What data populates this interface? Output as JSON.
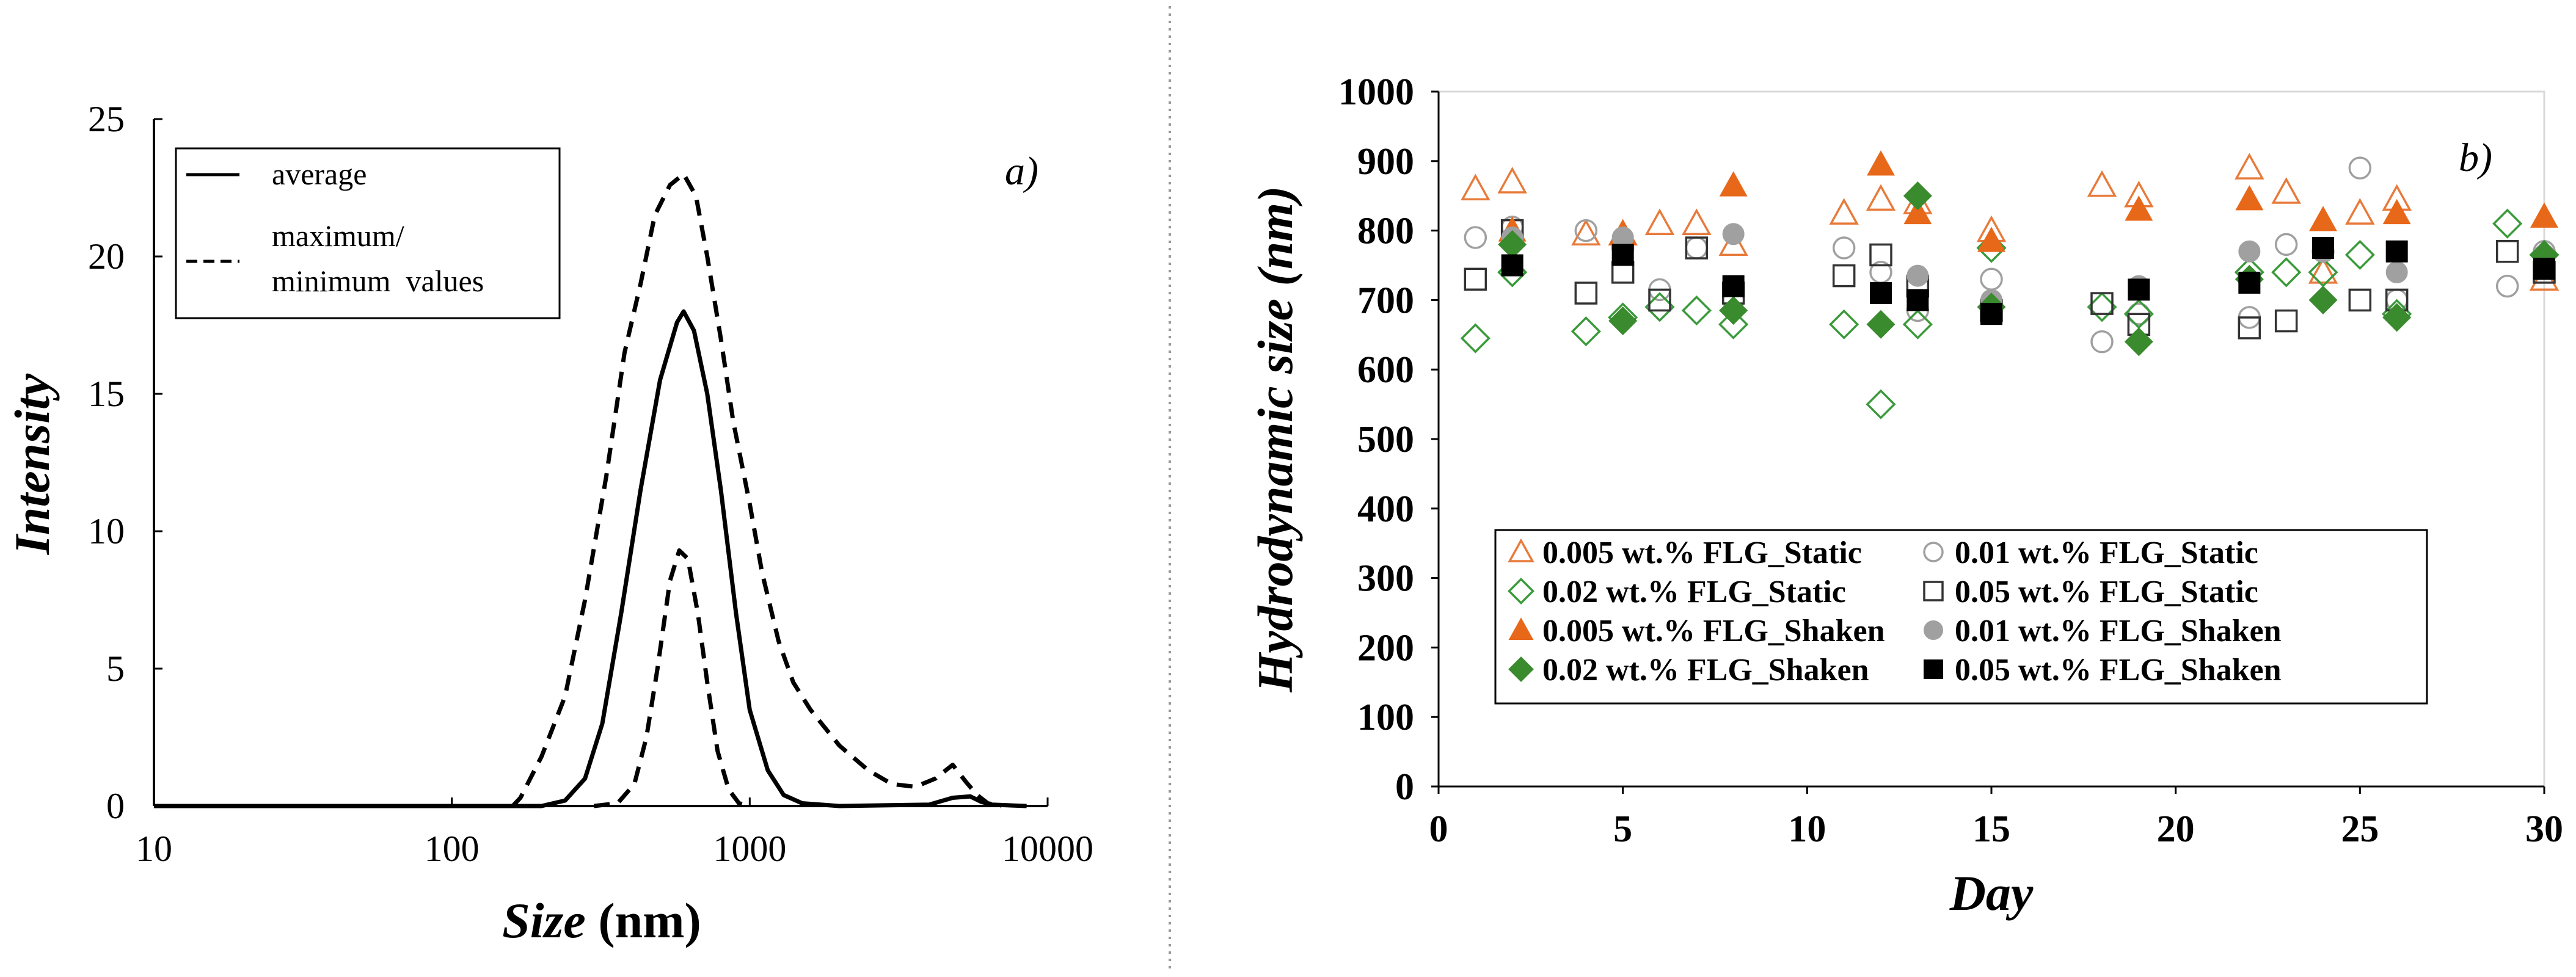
{
  "chart_data": [
    {
      "panel_label": "a)",
      "type": "line",
      "xscale": "log",
      "xlabel_italic": "Size",
      "xlabel_rest": " (nm)",
      "ylabel": "Intensity",
      "xlim": [
        10,
        10000
      ],
      "ylim": [
        0,
        25
      ],
      "x_ticks": [
        10,
        100,
        1000,
        10000
      ],
      "x_tick_labels": [
        "10",
        "100",
        "1000",
        "10000"
      ],
      "y_ticks": [
        0,
        5,
        10,
        15,
        20,
        25
      ],
      "y_tick_labels": [
        "0",
        "5",
        "10",
        "15",
        "20",
        "25"
      ],
      "legend": {
        "position": "top-left",
        "entries": [
          {
            "style": "solid",
            "lines": [
              "average"
            ]
          },
          {
            "style": "dashed",
            "lines": [
              "maximum/",
              "minimum  values"
            ]
          }
        ]
      },
      "series": [
        {
          "name": "average",
          "style": "solid",
          "points": [
            [
              10,
              0
            ],
            [
              200,
              0
            ],
            [
              240,
              0.2
            ],
            [
              280,
              1
            ],
            [
              320,
              3
            ],
            [
              370,
              7
            ],
            [
              430,
              11.5
            ],
            [
              500,
              15.5
            ],
            [
              570,
              17.6
            ],
            [
              600,
              18
            ],
            [
              650,
              17.3
            ],
            [
              720,
              15
            ],
            [
              800,
              11.5
            ],
            [
              900,
              7
            ],
            [
              1000,
              3.5
            ],
            [
              1150,
              1.3
            ],
            [
              1300,
              0.4
            ],
            [
              1500,
              0.1
            ],
            [
              2000,
              0
            ],
            [
              4000,
              0.05
            ],
            [
              4800,
              0.3
            ],
            [
              5500,
              0.35
            ],
            [
              6000,
              0.15
            ],
            [
              6500,
              0.05
            ],
            [
              8500,
              0
            ]
          ]
        },
        {
          "name": "maximum",
          "style": "dashed",
          "points": [
            [
              160,
              0
            ],
            [
              170,
              0.3
            ],
            [
              200,
              1.8
            ],
            [
              240,
              4
            ],
            [
              280,
              7.5
            ],
            [
              330,
              12
            ],
            [
              380,
              16.5
            ],
            [
              430,
              19
            ],
            [
              480,
              21.5
            ],
            [
              540,
              22.6
            ],
            [
              600,
              23
            ],
            [
              660,
              22.2
            ],
            [
              720,
              20
            ],
            [
              800,
              17
            ],
            [
              880,
              14
            ],
            [
              1000,
              11
            ],
            [
              1100,
              8.5
            ],
            [
              1250,
              6
            ],
            [
              1400,
              4.5
            ],
            [
              1600,
              3.5
            ],
            [
              2000,
              2.2
            ],
            [
              2500,
              1.3
            ],
            [
              3000,
              0.8
            ],
            [
              3600,
              0.7
            ],
            [
              4200,
              1
            ],
            [
              4800,
              1.5
            ],
            [
              5300,
              0.9
            ],
            [
              5800,
              0.4
            ],
            [
              6300,
              0.1
            ],
            [
              7000,
              0
            ]
          ]
        },
        {
          "name": "minimum",
          "style": "dashed",
          "points": [
            [
              300,
              0
            ],
            [
              360,
              0.1
            ],
            [
              410,
              0.8
            ],
            [
              450,
              2.5
            ],
            [
              490,
              5
            ],
            [
              540,
              8.2
            ],
            [
              580,
              9.3
            ],
            [
              620,
              9
            ],
            [
              670,
              7
            ],
            [
              720,
              4.5
            ],
            [
              780,
              2
            ],
            [
              850,
              0.6
            ],
            [
              920,
              0.1
            ],
            [
              1000,
              0
            ]
          ]
        }
      ]
    },
    {
      "panel_label": "b)",
      "type": "scatter",
      "xlabel": "Day",
      "ylabel": "Hydrodynamic size (nm)",
      "xlim": [
        0,
        30
      ],
      "ylim": [
        0,
        1000
      ],
      "x_ticks": [
        0,
        5,
        10,
        15,
        20,
        25,
        30
      ],
      "x_tick_labels": [
        "0",
        "5",
        "10",
        "15",
        "20",
        "25",
        "30"
      ],
      "y_ticks": [
        0,
        100,
        200,
        300,
        400,
        500,
        600,
        700,
        800,
        900,
        1000
      ],
      "y_tick_labels": [
        "0",
        "100",
        "200",
        "300",
        "400",
        "500",
        "600",
        "700",
        "800",
        "900",
        "1000"
      ],
      "legend": {
        "position": "bottom-center",
        "columns": 2
      },
      "series": [
        {
          "name": "0.005 wt.% FLG_Static",
          "marker": "triangle",
          "filled": false,
          "color": "#E87A3A",
          "points": [
            [
              1,
              860
            ],
            [
              2,
              870
            ],
            [
              4,
              795
            ],
            [
              5,
              795
            ],
            [
              6,
              810
            ],
            [
              7,
              810
            ],
            [
              8,
              780
            ],
            [
              11,
              825
            ],
            [
              12,
              845
            ],
            [
              13,
              840
            ],
            [
              15,
              800
            ],
            [
              18,
              865
            ],
            [
              19,
              850
            ],
            [
              22,
              890
            ],
            [
              23,
              855
            ],
            [
              24,
              740
            ],
            [
              25,
              825
            ],
            [
              26,
              845
            ],
            [
              30,
              730
            ]
          ]
        },
        {
          "name": "0.01 wt.% FLG_Static",
          "marker": "circle",
          "filled": false,
          "color": "#A0A0A0",
          "points": [
            [
              1,
              790
            ],
            [
              2,
              805
            ],
            [
              4,
              800
            ],
            [
              5,
              775
            ],
            [
              6,
              715
            ],
            [
              7,
              775
            ],
            [
              8,
              700
            ],
            [
              11,
              775
            ],
            [
              12,
              740
            ],
            [
              13,
              685
            ],
            [
              15,
              730
            ],
            [
              18,
              640
            ],
            [
              19,
              680
            ],
            [
              22,
              675
            ],
            [
              23,
              780
            ],
            [
              24,
              770
            ],
            [
              25,
              890
            ],
            [
              26,
              700
            ],
            [
              29,
              720
            ],
            [
              30,
              770
            ]
          ]
        },
        {
          "name": "0.02 wt.% FLG_Static",
          "marker": "diamond",
          "filled": false,
          "color": "#3A9A3A",
          "points": [
            [
              1,
              645
            ],
            [
              2,
              740
            ],
            [
              4,
              655
            ],
            [
              5,
              675
            ],
            [
              6,
              690
            ],
            [
              7,
              685
            ],
            [
              8,
              665
            ],
            [
              11,
              665
            ],
            [
              12,
              550
            ],
            [
              13,
              665
            ],
            [
              15,
              775
            ],
            [
              18,
              690
            ],
            [
              19,
              680
            ],
            [
              22,
              740
            ],
            [
              23,
              740
            ],
            [
              24,
              740
            ],
            [
              25,
              765
            ],
            [
              26,
              680
            ],
            [
              29,
              810
            ],
            [
              30,
              765
            ]
          ]
        },
        {
          "name": "0.05 wt.% FLG_Static",
          "marker": "square",
          "filled": false,
          "color": "#333333",
          "points": [
            [
              1,
              730
            ],
            [
              2,
              800
            ],
            [
              4,
              710
            ],
            [
              5,
              740
            ],
            [
              6,
              700
            ],
            [
              7,
              775
            ],
            [
              8,
              710
            ],
            [
              11,
              735
            ],
            [
              12,
              765
            ],
            [
              13,
              720
            ],
            [
              15,
              685
            ],
            [
              18,
              695
            ],
            [
              19,
              665
            ],
            [
              22,
              660
            ],
            [
              23,
              670
            ],
            [
              25,
              700
            ],
            [
              26,
              700
            ],
            [
              29,
              770
            ],
            [
              30,
              740
            ]
          ]
        },
        {
          "name": "0.005 wt.% FLG_Shaken",
          "marker": "triangle",
          "filled": true,
          "color": "#E8681A",
          "points": [
            [
              2,
              800
            ],
            [
              5,
              795
            ],
            [
              8,
              865
            ],
            [
              12,
              895
            ],
            [
              13,
              825
            ],
            [
              15,
              785
            ],
            [
              19,
              830
            ],
            [
              22,
              845
            ],
            [
              24,
              815
            ],
            [
              26,
              825
            ],
            [
              30,
              820
            ]
          ]
        },
        {
          "name": "0.01 wt.% FLG_Shaken",
          "marker": "circle",
          "filled": true,
          "color": "#A0A0A0",
          "points": [
            [
              2,
              790
            ],
            [
              5,
              790
            ],
            [
              8,
              795
            ],
            [
              12,
              710
            ],
            [
              13,
              735
            ],
            [
              15,
              700
            ],
            [
              19,
              720
            ],
            [
              22,
              770
            ],
            [
              24,
              770
            ],
            [
              26,
              740
            ],
            [
              30,
              765
            ]
          ]
        },
        {
          "name": "0.02 wt.% FLG_Shaken",
          "marker": "diamond",
          "filled": true,
          "color": "#3A8A2E",
          "points": [
            [
              2,
              780
            ],
            [
              5,
              670
            ],
            [
              8,
              685
            ],
            [
              12,
              665
            ],
            [
              13,
              850
            ],
            [
              15,
              690
            ],
            [
              19,
              640
            ],
            [
              22,
              730
            ],
            [
              24,
              700
            ],
            [
              26,
              675
            ],
            [
              30,
              765
            ]
          ]
        },
        {
          "name": "0.05 wt.% FLG_Shaken",
          "marker": "square",
          "filled": true,
          "color": "#000000",
          "points": [
            [
              2,
              750
            ],
            [
              5,
              765
            ],
            [
              8,
              720
            ],
            [
              12,
              710
            ],
            [
              13,
              700
            ],
            [
              15,
              680
            ],
            [
              19,
              715
            ],
            [
              22,
              725
            ],
            [
              24,
              775
            ],
            [
              26,
              770
            ],
            [
              30,
              745
            ]
          ]
        }
      ]
    }
  ]
}
